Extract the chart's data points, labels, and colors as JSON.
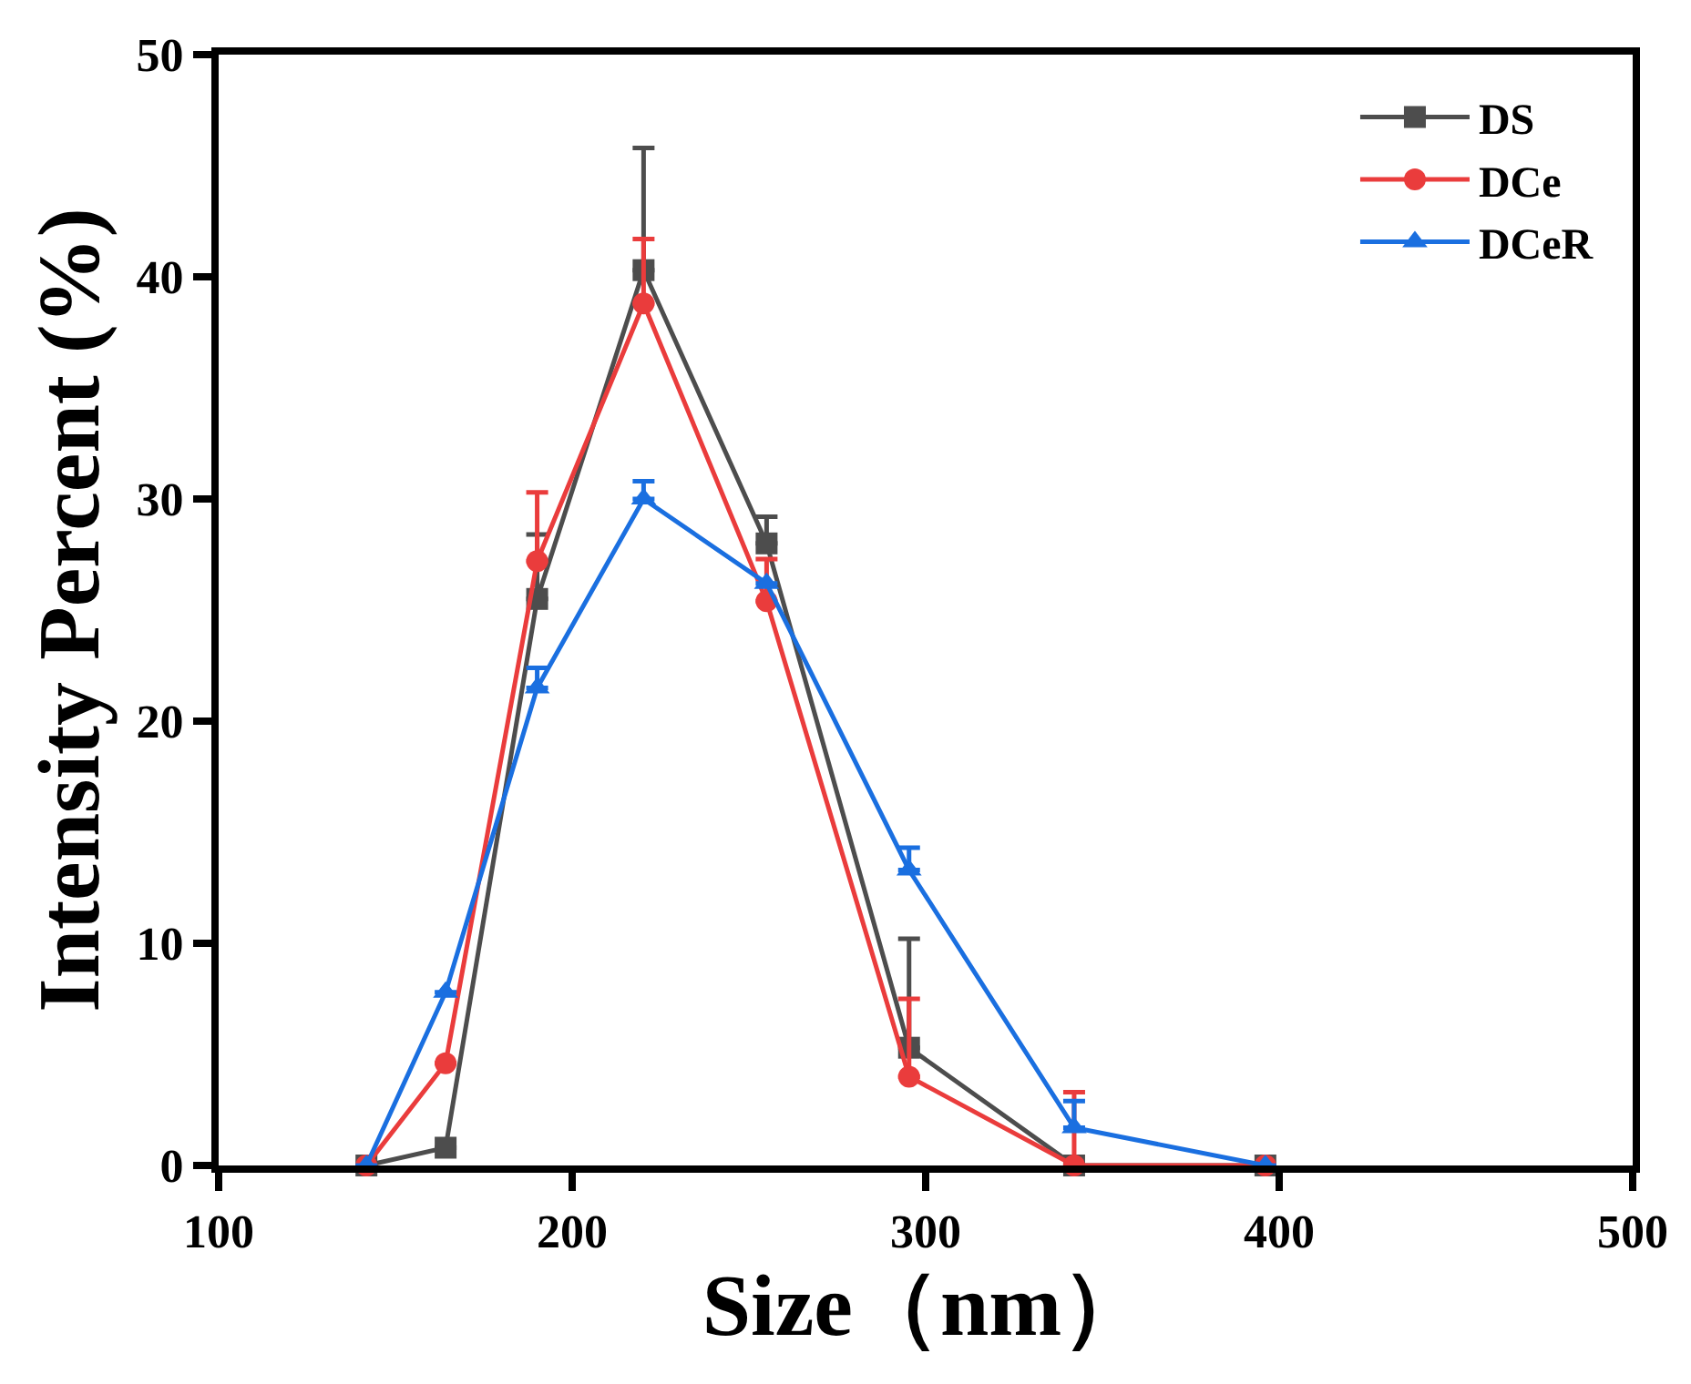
{
  "chart_data": {
    "type": "line",
    "xlabel": "Size（nm）",
    "ylabel": "Intensity Percent (%)",
    "x": [
      141.8,
      164.2,
      190.1,
      220.2,
      255.0,
      295.3,
      342.0,
      396.1
    ],
    "xlim": [
      100,
      500
    ],
    "xticks": [
      100,
      200,
      300,
      400,
      500
    ],
    "ylim": [
      0,
      50
    ],
    "yticks": [
      0,
      10,
      20,
      30,
      40,
      50
    ],
    "legend": "top right",
    "line_style": "solid",
    "series": [
      {
        "name": "DS",
        "color": "#4d4d4d",
        "marker": "square",
        "values": [
          0,
          0.8,
          25.5,
          40.3,
          28.0,
          5.3,
          0,
          0
        ],
        "errors": [
          null,
          null,
          [
            25.5,
            28.4
          ],
          [
            40.3,
            45.8
          ],
          [
            28.0,
            29.2
          ],
          [
            5.3,
            10.2
          ],
          null,
          null
        ]
      },
      {
        "name": "DCe",
        "color": "#ea3c3c",
        "marker": "circle",
        "values": [
          0,
          4.6,
          27.2,
          38.8,
          25.4,
          4.0,
          0,
          0
        ],
        "errors": [
          null,
          null,
          [
            27.2,
            30.3
          ],
          [
            38.8,
            41.7
          ],
          [
            25.4,
            27.3
          ],
          [
            4.0,
            7.5
          ],
          [
            0,
            3.3
          ],
          null
        ]
      },
      {
        "name": "DCeR",
        "color": "#1a6fe0",
        "marker": "triangle",
        "values": [
          0,
          7.8,
          21.5,
          30.0,
          26.2,
          13.3,
          1.7,
          0
        ],
        "errors": [
          null,
          null,
          [
            21.5,
            22.4
          ],
          [
            30.0,
            30.8
          ],
          null,
          [
            13.3,
            14.3
          ],
          [
            1.7,
            2.9
          ],
          null
        ]
      }
    ]
  }
}
